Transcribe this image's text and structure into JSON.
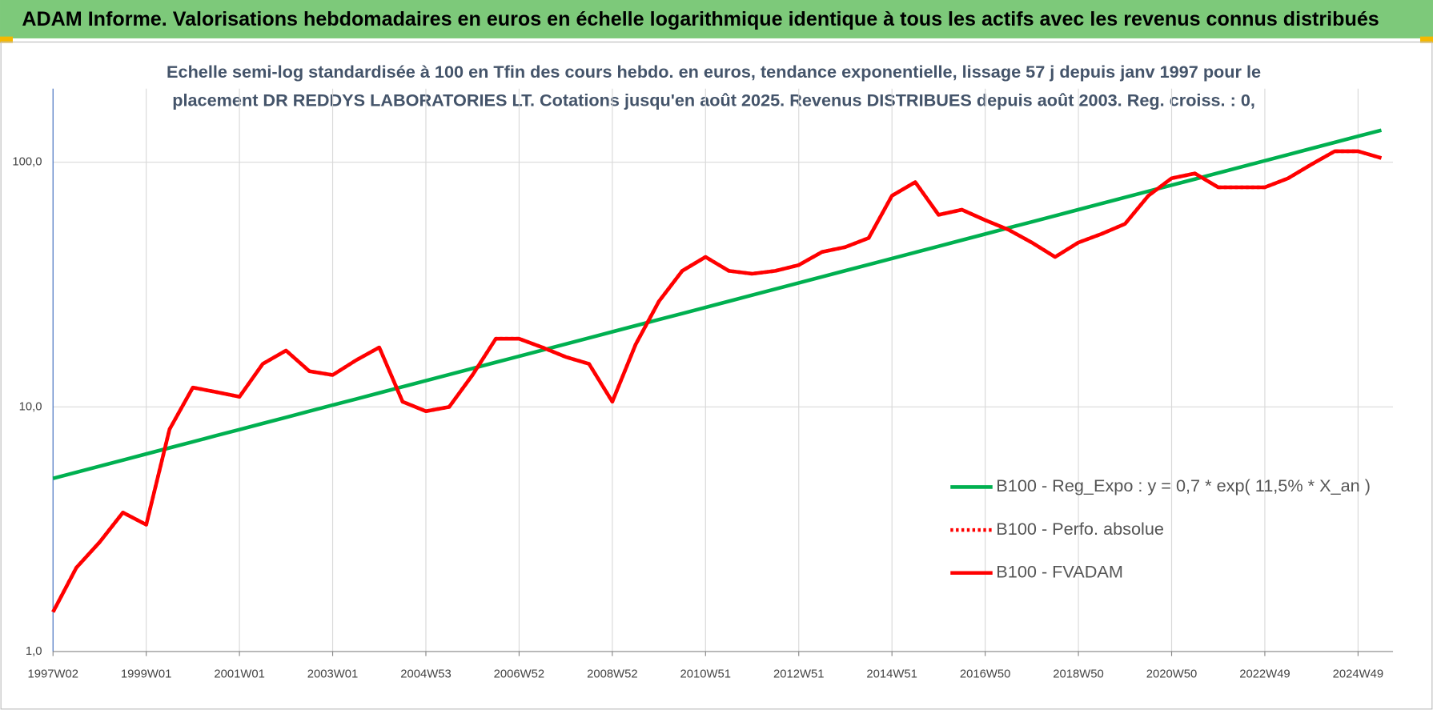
{
  "chart_data": {
    "type": "line",
    "title": "ADAM Informe. Valorisations hebdomadaires en euros en échelle logarithmique identique à tous les actifs avec les revenus connus distribués",
    "subtitle": [
      "Echelle semi-log standardisée à 100 en Tfin des cours hebdo. en euros, tendance exponentielle, lissage 57 j depuis janv 1997 pour le",
      "placement DR REDDYS LABORATORIES  LT. Cotations jusqu'en août 2025.  Revenus DISTRIBUES depuis août 2003. Reg. croiss. : 0,"
    ],
    "log_scale": true,
    "grid": true,
    "legend": "right",
    "ylim": [
      1,
      200
    ],
    "yticks": [
      {
        "value": 1,
        "label": "1,0"
      },
      {
        "value": 10,
        "label": "10,0"
      },
      {
        "value": 100,
        "label": "100,0"
      }
    ],
    "categories": [
      "1997W02",
      null,
      null,
      null,
      "1999W01",
      null,
      null,
      null,
      "2001W01",
      null,
      null,
      null,
      "2003W01",
      null,
      null,
      null,
      "2004W53",
      null,
      null,
      null,
      "2006W52",
      null,
      null,
      null,
      "2008W52",
      null,
      null,
      null,
      "2010W51",
      null,
      null,
      null,
      "2012W51",
      null,
      null,
      null,
      "2014W51",
      null,
      null,
      null,
      "2016W50",
      null,
      null,
      null,
      "2018W50",
      null,
      null,
      null,
      "2020W50",
      null,
      null,
      null,
      "2022W49",
      null,
      null,
      null,
      "2024W49",
      null
    ],
    "series": [
      {
        "name": "B100 - Reg_Expo : y = 0,7 * exp( 11,5% *  X_an )",
        "color": "#00b050",
        "dash": "solid",
        "values": [
          5.1,
          5.4,
          5.72,
          6.06,
          6.42,
          6.8,
          7.2,
          7.63,
          8.08,
          8.56,
          9.06,
          9.6,
          10.17,
          10.77,
          11.41,
          12.08,
          12.8,
          13.56,
          14.36,
          15.21,
          16.11,
          17.06,
          18.07,
          19.14,
          20.28,
          21.48,
          22.75,
          24.09,
          25.52,
          27.03,
          28.63,
          30.33,
          32.12,
          34.02,
          36.04,
          38.17,
          40.43,
          42.82,
          45.36,
          48.04,
          50.89,
          53.9,
          57.09,
          60.47,
          64.05,
          67.84,
          71.86,
          76.11,
          80.62,
          85.39,
          90.44,
          95.8,
          101.47,
          107.48,
          113.84,
          120.58,
          127.72,
          135.28
        ]
      },
      {
        "name": "B100 - Perfo. absolue",
        "color": "#ff0000",
        "dash": "dotted",
        "values": [
          1.45,
          2.2,
          2.8,
          3.7,
          3.3,
          8.1,
          12,
          11.5,
          11,
          15,
          17,
          14,
          13.5,
          15.5,
          17.5,
          10.5,
          9.6,
          10,
          13.5,
          19,
          19,
          17.5,
          16,
          15,
          10.5,
          18,
          27,
          36,
          41,
          36,
          35,
          36,
          38,
          43,
          45,
          49,
          73,
          83,
          61,
          64,
          58,
          53,
          47,
          41,
          47,
          51,
          56,
          73,
          86,
          90,
          79,
          79,
          79,
          86,
          98,
          111,
          111,
          104
        ]
      },
      {
        "name": "B100 - FVADAM",
        "color": "#ff0000",
        "dash": "solid",
        "values": [
          1.45,
          2.2,
          2.8,
          3.7,
          3.3,
          8.1,
          12,
          11.5,
          11,
          15,
          17,
          14,
          13.5,
          15.5,
          17.5,
          10.5,
          9.6,
          10,
          13.5,
          19,
          19,
          17.5,
          16,
          15,
          10.5,
          18,
          27,
          36,
          41,
          36,
          35,
          36,
          38,
          43,
          45,
          49,
          73,
          83,
          61,
          64,
          58,
          53,
          47,
          41,
          47,
          51,
          56,
          73,
          86,
          90,
          79,
          79,
          79,
          86,
          98,
          111,
          111,
          104
        ]
      }
    ]
  }
}
